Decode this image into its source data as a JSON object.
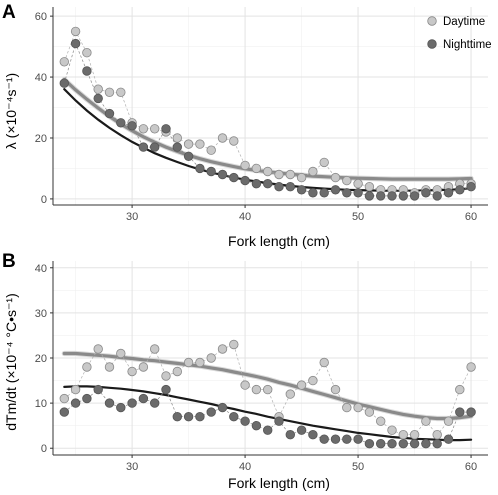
{
  "chart_data": [
    {
      "type": "scatter",
      "panel_label": "A",
      "xlabel": "Fork length (cm)",
      "ylabel": "λ (×10⁻⁴s⁻¹)",
      "xlim": [
        23,
        61.5
      ],
      "ylim": [
        -2,
        63
      ],
      "xticks": [
        30,
        40,
        50,
        60
      ],
      "yticks": [
        0,
        20,
        40,
        60
      ],
      "grid": true,
      "legend_position": "top-right",
      "series": [
        {
          "name": "Daytime",
          "color": "#c8c8c8",
          "x": [
            24,
            25,
            26,
            27,
            28,
            29,
            30,
            31,
            32,
            33,
            34,
            35,
            36,
            37,
            38,
            39,
            40,
            41,
            42,
            43,
            44,
            45,
            46,
            47,
            48,
            49,
            50,
            51,
            52,
            53,
            54,
            55,
            56,
            57,
            58,
            59,
            60
          ],
          "y": [
            45,
            55,
            48,
            36,
            35,
            35,
            25,
            23,
            23,
            22,
            20,
            18,
            18,
            16,
            20,
            19,
            11,
            10,
            9,
            8,
            8,
            7,
            9,
            12,
            7,
            6,
            5,
            4,
            3,
            3,
            3,
            2,
            3,
            3,
            4,
            5,
            5
          ],
          "trend": [
            39.2,
            35.8,
            32.7,
            29.8,
            27.1,
            24.6,
            22.4,
            20.4,
            18.6,
            17.0,
            15.6,
            14.3,
            13.2,
            12.2,
            11.4,
            10.6,
            9.9,
            9.4,
            8.9,
            8.5,
            8.1,
            7.8,
            7.5,
            7.3,
            7.1,
            6.9,
            6.8,
            6.7,
            6.6,
            6.5,
            6.5,
            6.5,
            6.5,
            6.5,
            6.5,
            6.6,
            6.7
          ]
        },
        {
          "name": "Nighttime",
          "color": "#6b6b6b",
          "x": [
            24,
            25,
            26,
            27,
            28,
            29,
            30,
            31,
            32,
            33,
            34,
            35,
            36,
            37,
            38,
            39,
            40,
            41,
            42,
            43,
            44,
            45,
            46,
            47,
            48,
            49,
            50,
            51,
            52,
            53,
            54,
            55,
            56,
            57,
            58,
            59,
            60
          ],
          "y": [
            38,
            51,
            42,
            33,
            28,
            25,
            24,
            17,
            17,
            23,
            17,
            14,
            10,
            9,
            8,
            7,
            6,
            5,
            5,
            4,
            4,
            3,
            2,
            2,
            3,
            2,
            2,
            1,
            1,
            1,
            1,
            1,
            2,
            1,
            2,
            3,
            4
          ],
          "trend": [
            36.0,
            32.3,
            29.0,
            26.0,
            23.3,
            20.9,
            18.7,
            16.8,
            15.0,
            13.5,
            12.1,
            10.8,
            9.7,
            8.7,
            7.8,
            7.0,
            6.3,
            5.7,
            5.2,
            4.7,
            4.3,
            3.9,
            3.6,
            3.4,
            3.2,
            3.0,
            2.9,
            2.8,
            2.7,
            2.7,
            2.7,
            2.7,
            2.8,
            2.9,
            3.0,
            3.2,
            3.5
          ]
        }
      ]
    },
    {
      "type": "scatter",
      "panel_label": "B",
      "xlabel": "Fork length (cm)",
      "ylabel": "dTm/dt (×10⁻⁴ °C•s⁻¹)",
      "xlim": [
        23,
        61.5
      ],
      "ylim": [
        -1.5,
        41.5
      ],
      "xticks": [
        30,
        40,
        50,
        60
      ],
      "yticks": [
        0,
        10,
        20,
        30,
        40
      ],
      "grid": true,
      "series": [
        {
          "name": "Daytime",
          "color": "#c8c8c8",
          "x": [
            24,
            25,
            26,
            27,
            28,
            29,
            30,
            31,
            32,
            33,
            34,
            35,
            36,
            37,
            38,
            39,
            40,
            41,
            42,
            43,
            44,
            45,
            46,
            47,
            48,
            49,
            50,
            51,
            52,
            53,
            54,
            55,
            56,
            57,
            58,
            59,
            60
          ],
          "y": [
            11,
            13,
            18,
            22,
            18,
            21,
            17,
            18,
            22,
            16,
            17,
            19,
            19,
            20,
            22,
            23,
            14,
            13,
            13,
            7,
            12,
            14,
            15,
            19,
            13,
            9,
            9,
            8,
            6,
            4,
            3,
            3,
            6,
            3,
            6,
            13,
            18
          ],
          "trend": [
            21.0,
            21.0,
            20.8,
            20.6,
            20.4,
            20.1,
            19.9,
            19.6,
            19.4,
            19.1,
            18.8,
            18.5,
            18.2,
            17.8,
            17.4,
            16.9,
            16.4,
            15.9,
            15.3,
            14.6,
            14.0,
            13.3,
            12.6,
            11.9,
            11.2,
            10.5,
            9.8,
            9.2,
            8.6,
            8.0,
            7.5,
            7.1,
            6.8,
            6.6,
            6.6,
            6.8,
            7.1
          ]
        },
        {
          "name": "Nighttime",
          "color": "#6b6b6b",
          "x": [
            24,
            25,
            26,
            27,
            28,
            29,
            30,
            31,
            32,
            33,
            34,
            35,
            36,
            37,
            38,
            39,
            40,
            41,
            42,
            43,
            44,
            45,
            46,
            47,
            48,
            49,
            50,
            51,
            52,
            53,
            54,
            55,
            56,
            57,
            58,
            59,
            60
          ],
          "y": [
            8,
            10,
            11,
            13,
            10,
            9,
            10,
            11,
            10,
            13,
            7,
            7,
            7,
            8,
            9,
            7,
            6,
            5,
            4,
            6,
            3,
            4,
            3,
            2,
            2,
            2,
            2,
            1,
            1,
            1,
            1,
            1,
            1,
            1,
            2,
            8,
            8
          ],
          "trend": [
            13.6,
            13.7,
            13.7,
            13.6,
            13.4,
            13.2,
            12.9,
            12.6,
            12.2,
            11.8,
            11.3,
            10.8,
            10.3,
            9.8,
            9.2,
            8.7,
            8.1,
            7.6,
            7.0,
            6.5,
            6.0,
            5.5,
            5.0,
            4.6,
            4.2,
            3.8,
            3.4,
            3.1,
            2.8,
            2.5,
            2.3,
            2.1,
            2.0,
            1.9,
            1.8,
            1.8,
            1.9
          ]
        }
      ]
    }
  ]
}
